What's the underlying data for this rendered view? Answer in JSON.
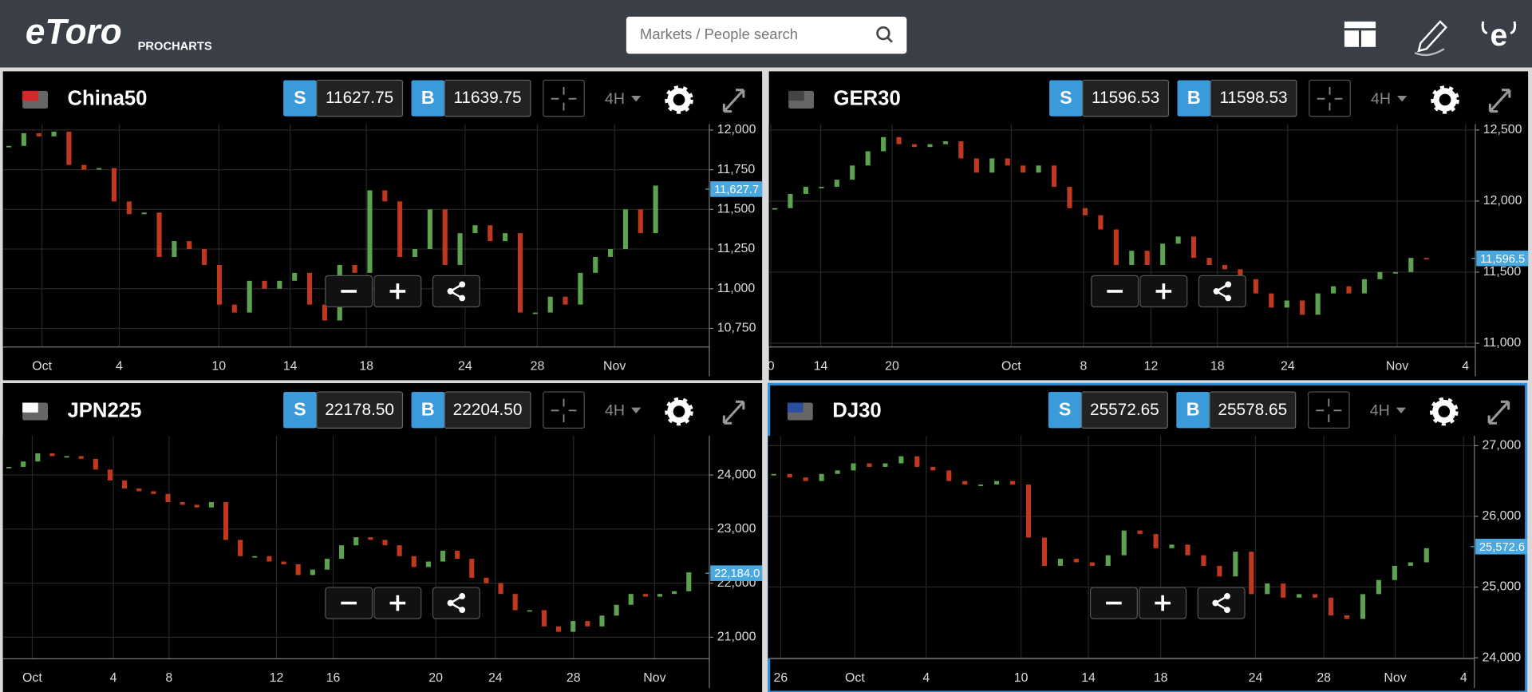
{
  "header": {
    "logo": "eToro",
    "sublogo": "PROCHARTS",
    "search_placeholder": "Markets / People search"
  },
  "panels": [
    {
      "name": "China50",
      "sell_label": "S",
      "sell": "11627.75",
      "buy_label": "B",
      "buy": "11639.75",
      "timeframe": "4H",
      "ylim": [
        10633,
        12037
      ],
      "yticks": [
        {
          "value": 12000,
          "label": "12,000"
        },
        {
          "value": 11750,
          "label": "11,750"
        },
        {
          "value": 11500,
          "label": "11,500"
        },
        {
          "value": 11250,
          "label": "11,250"
        },
        {
          "value": 11000,
          "label": "11,000"
        },
        {
          "value": 10750,
          "label": "10,750"
        }
      ],
      "price_tag": {
        "value": 11627.75,
        "label": "11,627.7"
      },
      "xticks": [
        "Oct",
        "4",
        "10",
        "14",
        "18",
        "24",
        "28",
        "Nov"
      ],
      "closes": [
        11900,
        11980,
        11960,
        11990,
        11780,
        11750,
        11760,
        11550,
        11470,
        11480,
        11200,
        11300,
        11250,
        11150,
        10900,
        10850,
        11050,
        11000,
        11050,
        11100,
        10900,
        10800,
        11150,
        11100,
        11620,
        11550,
        11200,
        11250,
        11500,
        11150,
        11350,
        11400,
        11300,
        11350,
        10850,
        10850,
        10950,
        10900,
        11100,
        11200,
        11250,
        11500,
        11350,
        11650
      ]
    },
    {
      "name": "GER30",
      "sell_label": "S",
      "sell": "11596.53",
      "buy_label": "B",
      "buy": "11598.53",
      "timeframe": "4H",
      "ylim": [
        10973,
        12541
      ],
      "yticks": [
        {
          "value": 12500,
          "label": "12,500"
        },
        {
          "value": 12000,
          "label": "12,000"
        },
        {
          "value": 11500,
          "label": "11,500"
        },
        {
          "value": 11000,
          "label": "11,000"
        }
      ],
      "price_tag": {
        "value": 11596.53,
        "label": "11,596.5"
      },
      "xticks": [
        "0",
        "14",
        "20",
        "Oct",
        "8",
        "12",
        "18",
        "24",
        "Nov",
        "4"
      ],
      "closes": [
        11950,
        12050,
        12100,
        12100,
        12150,
        12250,
        12350,
        12450,
        12400,
        12380,
        12400,
        12420,
        12300,
        12200,
        12300,
        12250,
        12200,
        12250,
        12100,
        11950,
        11900,
        11800,
        11550,
        11650,
        11550,
        11700,
        11750,
        11600,
        11550,
        11520,
        11450,
        11350,
        11250,
        11300,
        11200,
        11350,
        11400,
        11350,
        11450,
        11500,
        11500,
        11600,
        11590
      ]
    },
    {
      "name": "JPN225",
      "sell_label": "S",
      "sell": "22178.50",
      "buy_label": "B",
      "buy": "22204.50",
      "timeframe": "4H",
      "ylim": [
        20602,
        24723
      ],
      "yticks": [
        {
          "value": 24000,
          "label": "24,000"
        },
        {
          "value": 23000,
          "label": "23,000"
        },
        {
          "value": 22000,
          "label": "22,000"
        },
        {
          "value": 21000,
          "label": "21,000"
        }
      ],
      "price_tag": {
        "value": 22184,
        "label": "22,184.0"
      },
      "xticks": [
        "Oct",
        "4",
        "8",
        "12",
        "16",
        "20",
        "24",
        "28",
        "Nov"
      ],
      "closes": [
        24150,
        24250,
        24400,
        24350,
        24350,
        24300,
        24100,
        23900,
        23750,
        23700,
        23650,
        23500,
        23450,
        23400,
        23500,
        22800,
        22500,
        22500,
        22400,
        22350,
        22150,
        22250,
        22450,
        22700,
        22850,
        22800,
        22700,
        22500,
        22300,
        22400,
        22600,
        22450,
        22100,
        22000,
        21800,
        21500,
        21500,
        21200,
        21100,
        21300,
        21200,
        21400,
        21600,
        21800,
        21750,
        21800,
        21850,
        22200
      ]
    },
    {
      "name": "DJ30",
      "sell_label": "S",
      "sell": "25572.65",
      "buy_label": "B",
      "buy": "25578.65",
      "timeframe": "4H",
      "ylim": [
        23986,
        27138
      ],
      "yticks": [
        {
          "value": 27000,
          "label": "27,000"
        },
        {
          "value": 26000,
          "label": "26,000"
        },
        {
          "value": 25000,
          "label": "25,000"
        },
        {
          "value": 24000,
          "label": "24,000"
        }
      ],
      "price_tag": {
        "value": 25572.65,
        "label": "25,572.6"
      },
      "xticks": [
        "26",
        "Oct",
        "4",
        "10",
        "14",
        "18",
        "24",
        "28",
        "Nov",
        "4"
      ],
      "closes": [
        26600,
        26550,
        26500,
        26600,
        26650,
        26750,
        26700,
        26750,
        26850,
        26700,
        26650,
        26500,
        26450,
        26450,
        26500,
        26450,
        25700,
        25300,
        25400,
        25350,
        25300,
        25450,
        25800,
        25750,
        25550,
        25600,
        25450,
        25300,
        25150,
        25500,
        24900,
        25050,
        24850,
        24900,
        24850,
        24600,
        24550,
        24900,
        25100,
        25300,
        25350,
        25550
      ]
    }
  ]
}
